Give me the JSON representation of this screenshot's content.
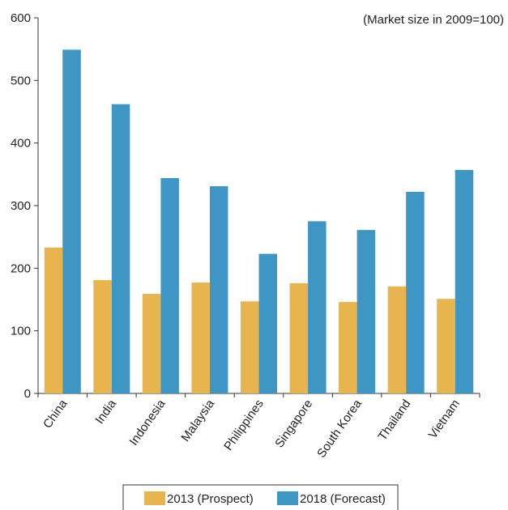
{
  "chart_data": {
    "type": "bar",
    "title": "",
    "subtitle": "(Market size in 2009=100)",
    "xlabel": "",
    "ylabel": "",
    "ylim": [
      0,
      600
    ],
    "yticks": [
      0,
      100,
      200,
      300,
      400,
      500,
      600
    ],
    "grid": false,
    "legend_position": "bottom",
    "categories": [
      "China",
      "India",
      "Indonesia",
      "Malaysia",
      "Philippines",
      "Singapore",
      "South Korea",
      "Thailand",
      "Vietnam"
    ],
    "series": [
      {
        "name": "2013 (Prospect)",
        "color": "#E8B44E",
        "values": [
          233,
          181,
          159,
          177,
          147,
          176,
          146,
          171,
          151
        ]
      },
      {
        "name": "2018 (Forecast)",
        "color": "#3D96C4",
        "values": [
          549,
          462,
          344,
          331,
          223,
          275,
          261,
          322,
          357
        ]
      }
    ]
  }
}
